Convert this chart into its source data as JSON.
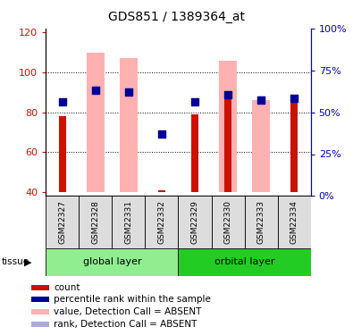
{
  "title": "GDS851 / 1389364_at",
  "samples": [
    "GSM22327",
    "GSM22328",
    "GSM22331",
    "GSM22332",
    "GSM22329",
    "GSM22330",
    "GSM22333",
    "GSM22334"
  ],
  "groups": {
    "global layer": [
      0,
      1,
      2,
      3
    ],
    "orbital layer": [
      4,
      5,
      6,
      7
    ]
  },
  "ylim_left": [
    38,
    122
  ],
  "ylim_right": [
    0,
    100
  ],
  "yticks_left": [
    40,
    60,
    80,
    100,
    120
  ],
  "yticks_right": [
    0,
    25,
    50,
    75,
    100
  ],
  "yticklabels_right": [
    "0%",
    "25%",
    "50%",
    "75%",
    "100%"
  ],
  "red_bars": [
    78,
    40,
    40,
    41,
    79,
    88,
    40,
    87
  ],
  "pink_bars": [
    null,
    110,
    107,
    null,
    null,
    106,
    86,
    null
  ],
  "blue_squares": [
    85,
    91,
    90,
    69,
    85,
    89,
    86,
    87
  ],
  "lightblue_squares": [
    null,
    91,
    90,
    null,
    null,
    null,
    86,
    null
  ],
  "bar_bottom": 40,
  "pink_bar_width": 0.55,
  "red_bar_width": 0.22,
  "square_size": 35,
  "colors": {
    "red": "#CC1100",
    "pink": "#FFB0B0",
    "blue": "#000099",
    "lightblue": "#AAAADD",
    "axis_left": "#CC1100",
    "axis_right": "#0000CC",
    "gray_box": "#DDDDDD",
    "global_layer": "#90EE90",
    "orbital_layer": "#22CC22"
  },
  "legend_items": [
    {
      "color": "#CC1100",
      "label": "count"
    },
    {
      "color": "#000099",
      "label": "percentile rank within the sample"
    },
    {
      "color": "#FFB0B0",
      "label": "value, Detection Call = ABSENT"
    },
    {
      "color": "#AAAADD",
      "label": "rank, Detection Call = ABSENT"
    }
  ]
}
